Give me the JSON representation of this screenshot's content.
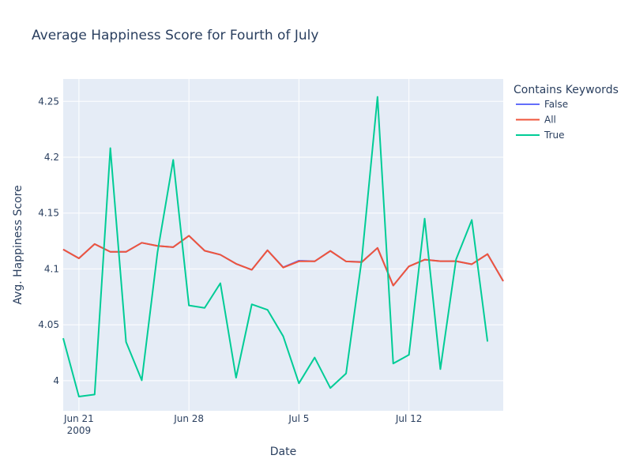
{
  "chart_data": {
    "type": "line",
    "title": "Average Happiness Score for Fourth of July",
    "xlabel": "Date",
    "ylabel": "Avg. Happiness Score",
    "x": [
      "2009-06-20",
      "2009-06-21",
      "2009-06-22",
      "2009-06-23",
      "2009-06-24",
      "2009-06-25",
      "2009-06-26",
      "2009-06-27",
      "2009-06-28",
      "2009-06-29",
      "2009-06-30",
      "2009-07-01",
      "2009-07-02",
      "2009-07-03",
      "2009-07-04",
      "2009-07-05",
      "2009-07-06",
      "2009-07-07",
      "2009-07-08",
      "2009-07-09",
      "2009-07-10",
      "2009-07-11",
      "2009-07-12",
      "2009-07-13",
      "2009-07-14",
      "2009-07-15",
      "2009-07-16",
      "2009-07-17",
      "2009-07-18"
    ],
    "xlim": [
      "2009-06-20",
      "2009-07-18"
    ],
    "ylim": [
      3.973,
      4.27
    ],
    "yticks": [
      4,
      4.05,
      4.1,
      4.15,
      4.2,
      4.25
    ],
    "ytick_labels": [
      "4",
      "4.05",
      "4.1",
      "4.15",
      "4.2",
      "4.25"
    ],
    "xticks": [
      {
        "date": "2009-06-21",
        "label": "Jun 21",
        "sublabel": "2009"
      },
      {
        "date": "2009-06-28",
        "label": "Jun 28",
        "sublabel": ""
      },
      {
        "date": "2009-07-05",
        "label": "Jul 5",
        "sublabel": ""
      },
      {
        "date": "2009-07-12",
        "label": "Jul 12",
        "sublabel": ""
      }
    ],
    "legend_title": "Contains Keywords",
    "legend_position": "right",
    "grid": true,
    "series": [
      {
        "name": "False",
        "color": "#636efa",
        "values": [
          4.1174,
          4.1095,
          4.1223,
          4.1153,
          4.1153,
          4.1234,
          4.1206,
          4.1195,
          4.1297,
          4.1163,
          4.1127,
          4.1046,
          4.0992,
          4.1167,
          4.1015,
          4.1074,
          4.1068,
          4.1161,
          4.1067,
          4.1063,
          4.1188,
          4.0851,
          4.1023,
          4.1083,
          4.1069,
          4.1069,
          4.1042,
          4.1133,
          4.0891
        ]
      },
      {
        "name": "All",
        "color": "#ef553b",
        "values": [
          4.1174,
          4.1095,
          4.1223,
          4.1153,
          4.1153,
          4.1234,
          4.1206,
          4.1195,
          4.1297,
          4.1163,
          4.1127,
          4.1046,
          4.0992,
          4.1167,
          4.1012,
          4.1068,
          4.1068,
          4.1161,
          4.1067,
          4.106,
          4.1188,
          4.0851,
          4.1023,
          4.1083,
          4.1069,
          4.1069,
          4.1042,
          4.1133,
          4.0891
        ]
      },
      {
        "name": "True",
        "color": "#00cc96",
        "values": [
          4.038,
          3.9857,
          3.9876,
          4.2081,
          4.0346,
          4.0003,
          4.1148,
          4.1976,
          4.0673,
          4.0651,
          4.0872,
          4.0026,
          4.0683,
          4.0634,
          4.0397,
          3.9976,
          4.0207,
          3.9934,
          4.0064,
          4.1088,
          4.254,
          4.0153,
          4.0231,
          4.145,
          4.0103,
          4.1086,
          4.1438,
          4.035,
          null
        ]
      }
    ]
  }
}
